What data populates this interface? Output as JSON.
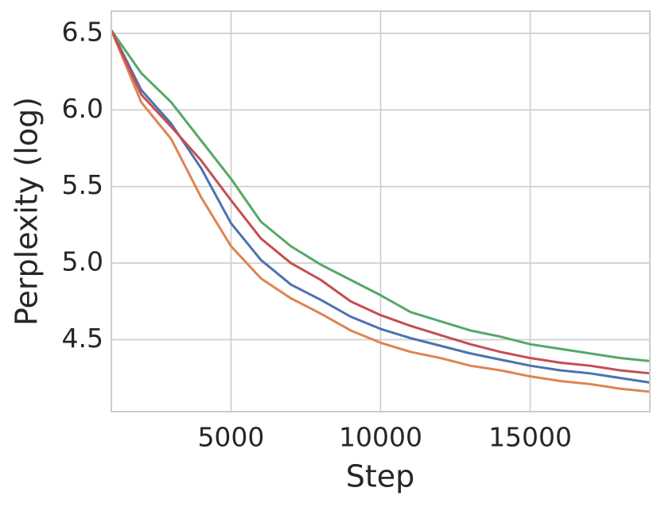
{
  "chart_data": {
    "type": "line",
    "xlabel": "Step",
    "ylabel": "Perplexity (log)",
    "x": [
      1000,
      2000,
      3000,
      4000,
      5000,
      6000,
      7000,
      8000,
      9000,
      10000,
      11000,
      12000,
      13000,
      14000,
      15000,
      16000,
      17000,
      18000,
      19000
    ],
    "series": [
      {
        "color": "#4c72b0",
        "values": [
          6.52,
          6.13,
          5.91,
          5.62,
          5.26,
          5.02,
          4.86,
          4.76,
          4.65,
          4.57,
          4.51,
          4.46,
          4.41,
          4.37,
          4.33,
          4.3,
          4.28,
          4.25,
          4.22
        ]
      },
      {
        "color": "#dd8452",
        "values": [
          6.52,
          6.05,
          5.81,
          5.43,
          5.11,
          4.9,
          4.77,
          4.67,
          4.56,
          4.48,
          4.42,
          4.38,
          4.33,
          4.3,
          4.26,
          4.23,
          4.21,
          4.18,
          4.16
        ]
      },
      {
        "color": "#55a868",
        "values": [
          6.52,
          6.24,
          6.05,
          5.8,
          5.55,
          5.27,
          5.11,
          4.99,
          4.89,
          4.79,
          4.68,
          4.62,
          4.56,
          4.52,
          4.47,
          4.44,
          4.41,
          4.38,
          4.36
        ]
      },
      {
        "color": "#c44e52",
        "values": [
          6.52,
          6.1,
          5.89,
          5.67,
          5.41,
          5.16,
          5.0,
          4.89,
          4.75,
          4.66,
          4.59,
          4.53,
          4.47,
          4.42,
          4.38,
          4.35,
          4.33,
          4.3,
          4.28
        ]
      }
    ],
    "xlim": [
      1000,
      19000
    ],
    "xticks": [
      5000,
      10000,
      15000
    ],
    "ylim": [
      4.03,
      6.645
    ],
    "yticks": [
      {
        "value": 4.5,
        "label": "4.5"
      },
      {
        "value": 5,
        "label": "5.0"
      },
      {
        "value": 5.5,
        "label": "5.5"
      },
      {
        "value": 6,
        "label": "6.0"
      },
      {
        "value": 6.5,
        "label": "6.5"
      }
    ],
    "grid": true
  }
}
